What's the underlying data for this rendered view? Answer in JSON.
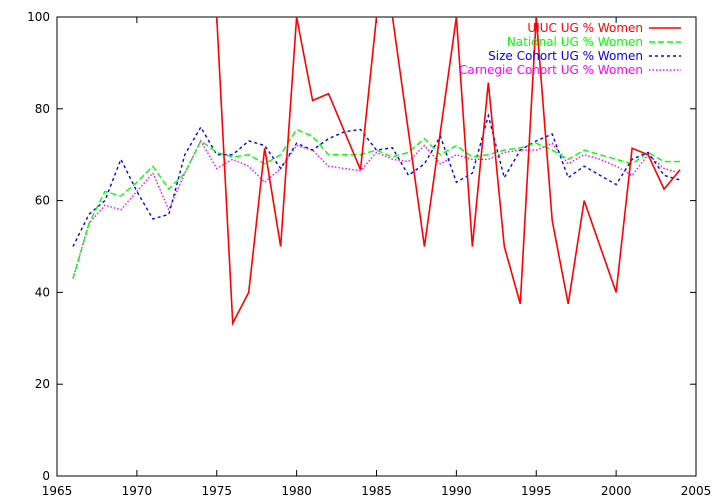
{
  "chart_data": {
    "type": "line",
    "title": "",
    "xlabel": "",
    "ylabel": "",
    "xlim": [
      1965,
      2005
    ],
    "ylim": [
      0,
      100
    ],
    "xticks": [
      1965,
      1970,
      1975,
      1980,
      1985,
      1990,
      1995,
      2000,
      2005
    ],
    "yticks": [
      0,
      20,
      40,
      60,
      80,
      100
    ],
    "grid": false,
    "legend_position": "top-right",
    "series": [
      {
        "name": "UIUC UG % Women",
        "color": "#ff0000",
        "dash": "solid",
        "x": [
          1975,
          1976,
          1977,
          1978,
          1979,
          1980,
          1981,
          1982,
          1984,
          1985,
          1986,
          1988,
          1989,
          1990,
          1991,
          1992,
          1993,
          1994,
          1995,
          1996,
          1997,
          1998,
          2000,
          2001,
          2002,
          2003,
          2004
        ],
        "values": [
          100,
          33.3,
          40,
          71.4,
          50,
          100,
          81.8,
          83.3,
          66.7,
          100,
          100,
          50,
          75,
          100,
          50,
          85.7,
          50,
          37.5,
          100,
          55.6,
          37.5,
          60,
          40,
          71.4,
          70,
          62.5,
          66.7
        ]
      },
      {
        "name": "National UG % Women",
        "color": "#00ff00",
        "dash": "dashed",
        "x": [
          1966,
          1967,
          1968,
          1969,
          1970,
          1971,
          1972,
          1973,
          1974,
          1975,
          1976,
          1977,
          1978,
          1979,
          1980,
          1981,
          1982,
          1983,
          1984,
          1985,
          1986,
          1987,
          1988,
          1989,
          1990,
          1991,
          1992,
          1993,
          1994,
          1995,
          1996,
          1997,
          1998,
          1999,
          2000,
          2001,
          2002,
          2003,
          2004
        ],
        "values": [
          43,
          55,
          62,
          61,
          64,
          67.5,
          62.5,
          66,
          73,
          70.5,
          69.5,
          70,
          68,
          70,
          75.5,
          74,
          70,
          70,
          70,
          71,
          69.5,
          70.5,
          73.5,
          70,
          72,
          69.5,
          70,
          71,
          71.5,
          72.5,
          71,
          69,
          71,
          70,
          69,
          68,
          70.5,
          68.5,
          68.5
        ]
      },
      {
        "name": "Size Cohort UG % Women",
        "color": "#0000ff",
        "dash": "dotted",
        "x": [
          1966,
          1967,
          1968,
          1969,
          1970,
          1971,
          1972,
          1973,
          1974,
          1975,
          1976,
          1977,
          1978,
          1979,
          1980,
          1981,
          1982,
          1983,
          1984,
          1985,
          1986,
          1987,
          1988,
          1989,
          1990,
          1991,
          1992,
          1993,
          1994,
          1995,
          1996,
          1997,
          1998,
          1999,
          2000,
          2001,
          2002,
          2003,
          2004
        ],
        "values": [
          50,
          57,
          60,
          69,
          62,
          56,
          57,
          70,
          76,
          70,
          70,
          73,
          72,
          67,
          72.5,
          71,
          73.5,
          75,
          75.5,
          71,
          71.5,
          65.5,
          68,
          74,
          64,
          66,
          78.5,
          65,
          71,
          73,
          74.5,
          65,
          67.5,
          65.5,
          63.5,
          69,
          70.5,
          65.5,
          64.5
        ]
      },
      {
        "name": "Carnegie Cohort UG % Women",
        "color": "#ff00ff",
        "dash": "dotted-fine",
        "x": [
          1966,
          1967,
          1968,
          1969,
          1970,
          1971,
          1972,
          1973,
          1974,
          1975,
          1976,
          1977,
          1978,
          1979,
          1980,
          1981,
          1982,
          1983,
          1984,
          1985,
          1986,
          1987,
          1988,
          1989,
          1990,
          1991,
          1992,
          1993,
          1994,
          1995,
          1996,
          1997,
          1998,
          1999,
          2000,
          2001,
          2002,
          2003,
          2004
        ],
        "values": [
          43,
          55,
          59,
          58,
          62,
          66,
          58,
          66,
          73,
          67,
          69,
          67.5,
          64,
          67,
          72,
          71,
          67.5,
          67,
          66.5,
          70.5,
          69,
          68.5,
          72,
          68,
          70,
          69,
          69,
          70.5,
          71,
          71,
          72.5,
          68,
          70,
          69,
          67.5,
          65.5,
          70,
          67,
          66
        ]
      }
    ]
  }
}
